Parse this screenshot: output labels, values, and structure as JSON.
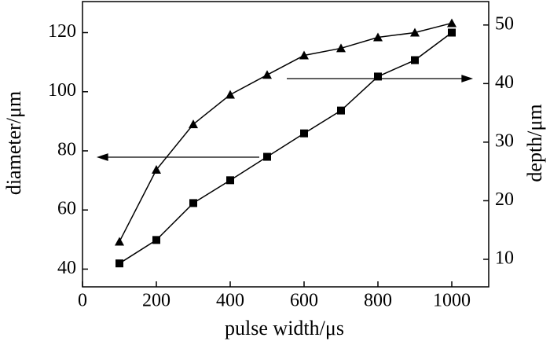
{
  "chart_data": {
    "type": "line",
    "x_label": "pulse width/μs",
    "y_label": "diameter/μm",
    "y2_label": "depth/μm",
    "xlim": [
      0,
      1100
    ],
    "xticks": [
      0,
      200,
      400,
      600,
      800,
      1000
    ],
    "ylim": [
      34,
      130.5
    ],
    "yticks": [
      40,
      60,
      80,
      100,
      120
    ],
    "y2lim": [
      5.3,
      54
    ],
    "y2ticks": [
      10,
      20,
      30,
      40,
      50
    ],
    "series": [
      {
        "color": "#000000",
        "marker": "triangle",
        "axis": "y",
        "x": [
          100,
          200,
          300,
          400,
          500,
          600,
          700,
          800,
          900,
          1000
        ],
        "values": [
          49.3,
          73.6,
          89,
          99,
          105.7,
          112.3,
          114.7,
          118.4,
          120,
          123.2
        ]
      },
      {
        "color": "#000000",
        "marker": "square",
        "axis": "y2",
        "x": [
          100,
          200,
          300,
          400,
          500,
          600,
          700,
          800,
          900,
          1000
        ],
        "values": [
          9.3,
          13.3,
          19.6,
          23.5,
          27.5,
          31.5,
          35.4,
          41.2,
          44.0,
          48.7
        ]
      }
    ]
  }
}
